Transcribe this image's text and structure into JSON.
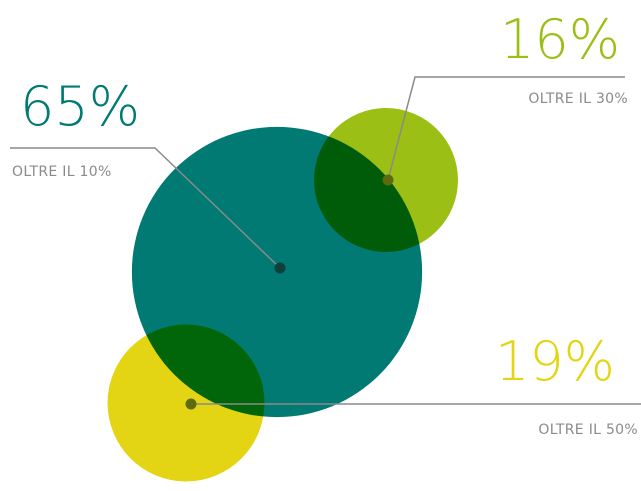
{
  "chart_data": {
    "type": "bubble",
    "categories": [
      "OLTRE IL 10%",
      "OLTRE IL 30%",
      "OLTRE IL 50%"
    ],
    "values": [
      65,
      16,
      19
    ],
    "value_labels": [
      "65%",
      "16%",
      "19%"
    ],
    "colors": [
      "#007a73",
      "#9bbf14",
      "#e3d514"
    ]
  }
}
